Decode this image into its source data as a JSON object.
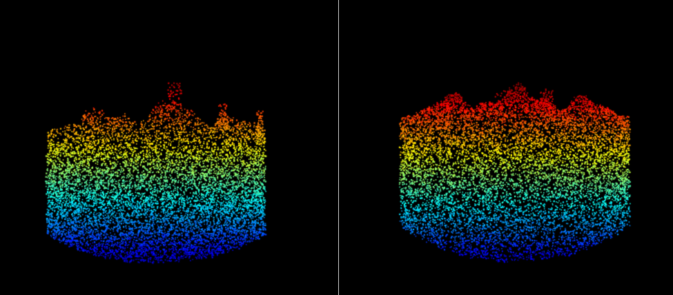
{
  "viewer": {
    "background_color": "#000000",
    "divider_color": "#d0d0d0",
    "colormap": "jet",
    "panels": [
      {
        "id": "left",
        "content": "point-cloud-rendering",
        "height_range_shown": [
          0.0,
          1.0
        ]
      },
      {
        "id": "right",
        "content": "point-cloud-rendering",
        "height_range_shown": [
          0.0,
          1.0
        ]
      }
    ]
  }
}
